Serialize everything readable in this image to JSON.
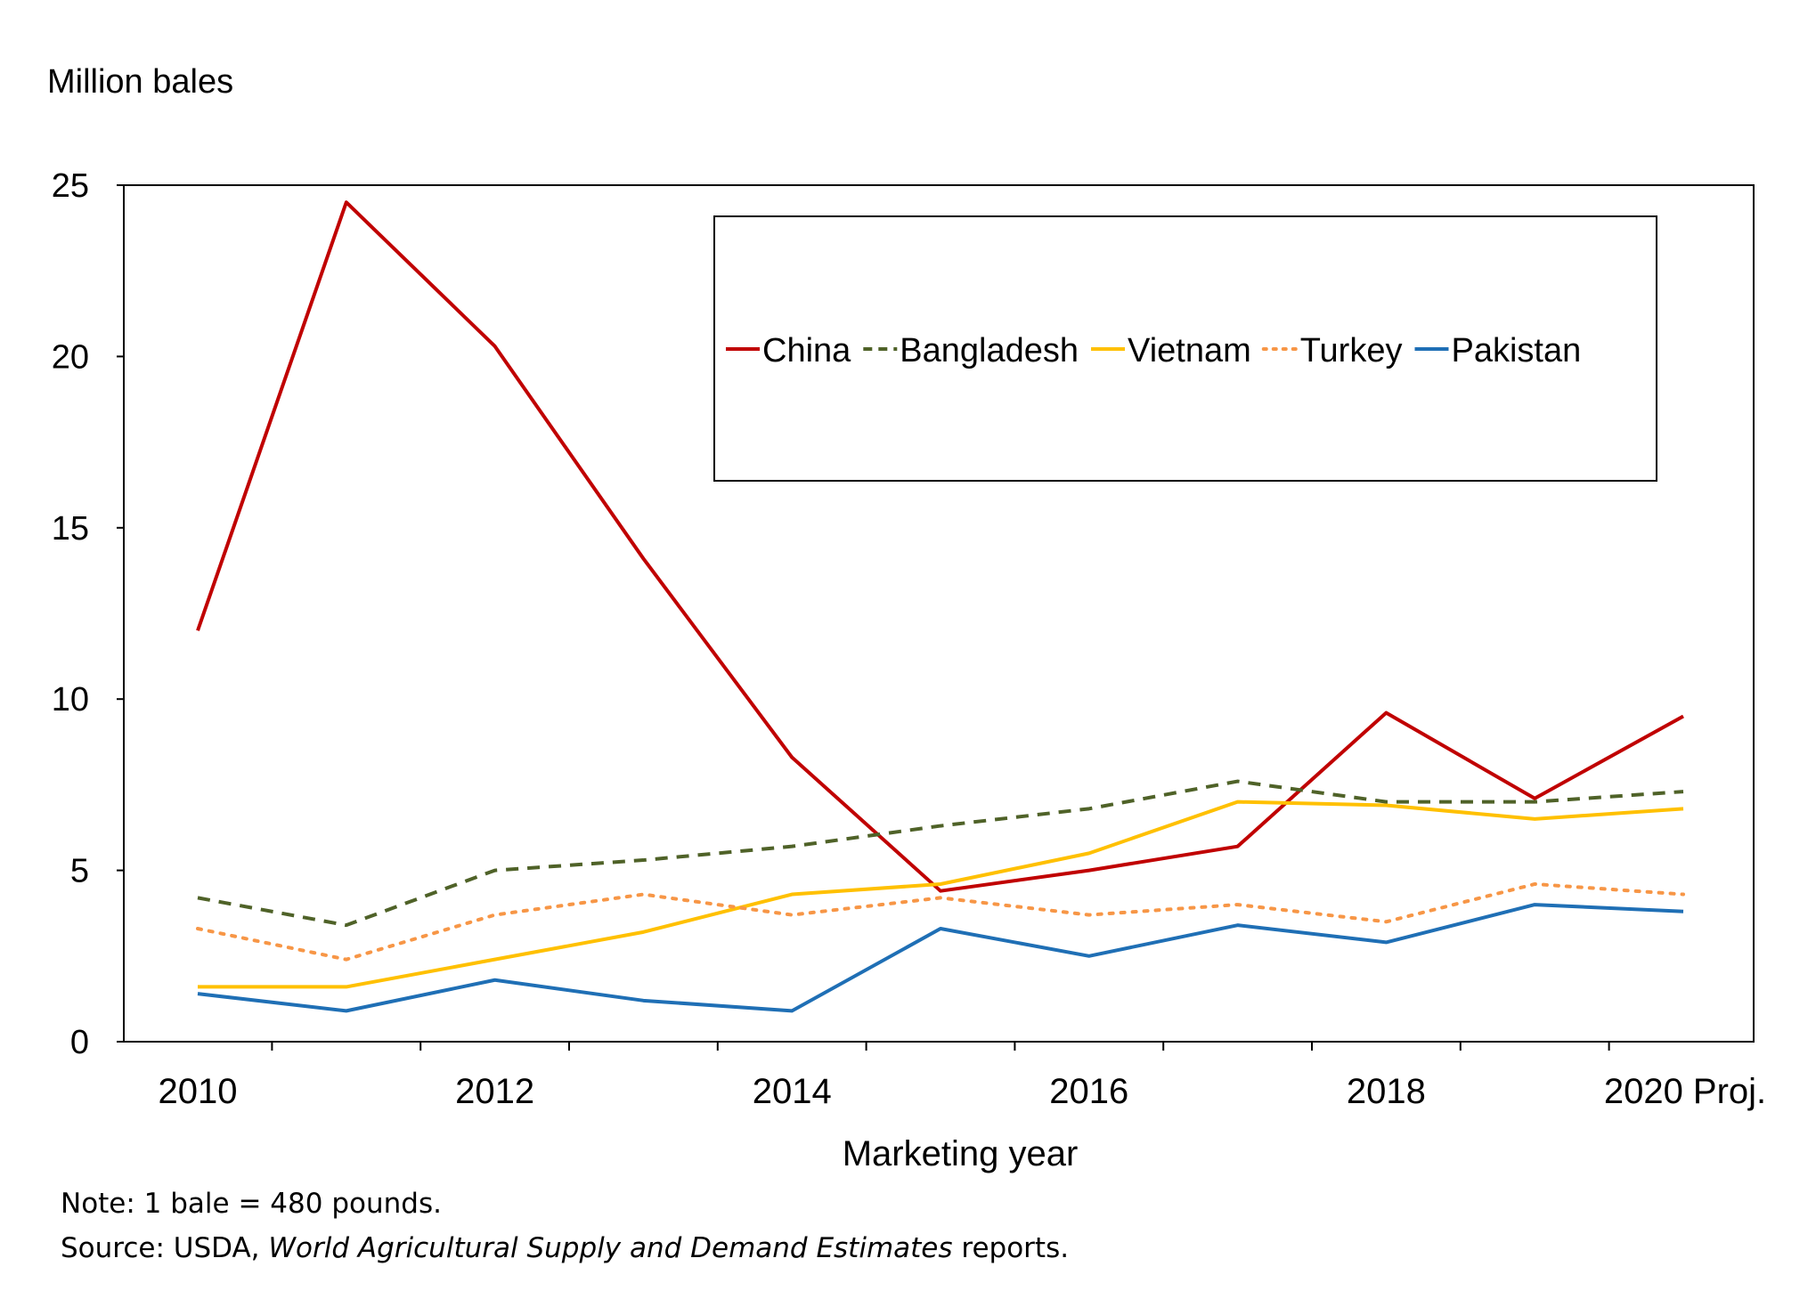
{
  "chart_data": {
    "type": "line",
    "ylabel": "Million bales",
    "xlabel": "Marketing year",
    "x": [
      2010,
      2011,
      2012,
      2013,
      2014,
      2015,
      2016,
      2017,
      2018,
      2019,
      2020
    ],
    "x_tick_labels": [
      "2010",
      "2012",
      "2014",
      "2016",
      "2018",
      "2020 Proj."
    ],
    "x_tick_values": [
      2010,
      2012,
      2014,
      2016,
      2018,
      2020
    ],
    "y_ticks": [
      0,
      5,
      10,
      15,
      20,
      25
    ],
    "ylim": [
      0,
      25
    ],
    "grid": false,
    "legend_position": "top-right",
    "series": [
      {
        "name": "China",
        "color": "#C00000",
        "dash": "solid",
        "values": [
          12.0,
          24.5,
          20.3,
          14.1,
          8.3,
          4.4,
          5.0,
          5.7,
          9.6,
          7.1,
          9.5
        ]
      },
      {
        "name": "Bangladesh",
        "color": "#4F6228",
        "dash": "dashed",
        "values": [
          4.2,
          3.4,
          5.0,
          5.3,
          5.7,
          6.3,
          6.8,
          7.6,
          7.0,
          7.0,
          7.3
        ]
      },
      {
        "name": "Vietnam",
        "color": "#FFC000",
        "dash": "solid",
        "values": [
          1.6,
          1.6,
          2.4,
          3.2,
          4.3,
          4.6,
          5.5,
          7.0,
          6.9,
          6.5,
          6.8
        ]
      },
      {
        "name": "Turkey",
        "color": "#F79646",
        "dash": "dotted",
        "values": [
          3.3,
          2.4,
          3.7,
          4.3,
          3.7,
          4.2,
          3.7,
          4.0,
          3.5,
          4.6,
          4.3
        ]
      },
      {
        "name": "Pakistan",
        "color": "#1F6FB5",
        "dash": "solid",
        "values": [
          1.4,
          0.9,
          1.8,
          1.2,
          0.9,
          3.3,
          2.5,
          3.4,
          2.9,
          4.0,
          3.8
        ]
      }
    ]
  },
  "note": "Note: 1 bale = 480 pounds.",
  "source": {
    "prefix": "Source: USDA, ",
    "title": "World Agricultural Supply and Demand Estimates",
    "suffix": " reports."
  }
}
